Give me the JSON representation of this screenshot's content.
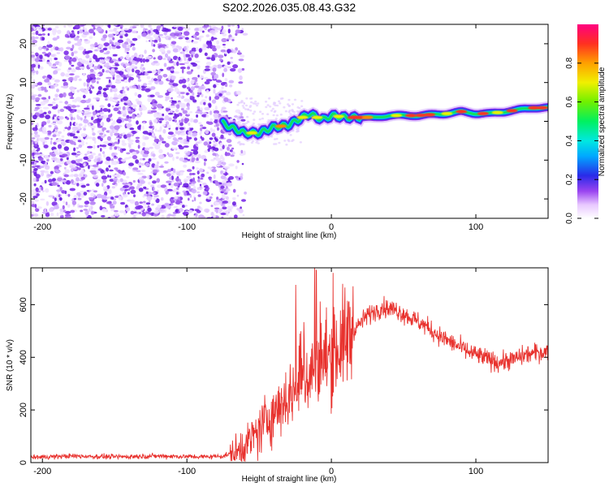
{
  "title": "S202.2026.035.08.43.G32",
  "chart_data": [
    {
      "type": "heatmap",
      "xlabel": "Height of straight line (km)",
      "ylabel": "Frequency (Hz)",
      "xlim": [
        -208,
        150
      ],
      "ylim": [
        -25,
        25
      ],
      "xticks": [
        -200,
        -100,
        0,
        100
      ],
      "yticks": [
        -20,
        -10,
        0,
        10,
        20
      ],
      "noise_region_x": [
        -208,
        -65
      ],
      "ridge": {
        "x": [
          -75,
          -70,
          -60,
          -50,
          -40,
          -30,
          -20,
          -15,
          -10,
          -5,
          0,
          10,
          20,
          30,
          40,
          60,
          80,
          90,
          100,
          110,
          120,
          130,
          140,
          150
        ],
        "y": [
          -0.5,
          -1.5,
          -3,
          -3,
          -1.5,
          -1,
          1,
          2,
          1,
          0.5,
          1.5,
          1,
          1,
          1,
          1.5,
          1.5,
          2,
          2.5,
          2,
          2,
          2.5,
          3,
          3.5,
          3.5
        ]
      },
      "colorbar": {
        "label": "Normalized spectral amplitude",
        "ticks": [
          "0.0",
          "0.2",
          "0.4",
          "0.6",
          "0.8"
        ],
        "range": [
          0,
          1
        ]
      }
    },
    {
      "type": "line",
      "xlabel": "Height of straight line (km)",
      "ylabel": "SNR (10 * v/v)",
      "xlim": [
        -208,
        150
      ],
      "ylim": [
        0,
        740
      ],
      "xticks": [
        -200,
        -100,
        0,
        100
      ],
      "yticks": [
        0,
        200,
        400,
        600
      ],
      "series": [
        {
          "name": "SNR",
          "color": "#e8322e",
          "x": [
            -208,
            -180,
            -150,
            -120,
            -90,
            -75,
            -65,
            -55,
            -45,
            -35,
            -25,
            -15,
            -5,
            5,
            15,
            25,
            35,
            45,
            55,
            65,
            75,
            85,
            95,
            105,
            115,
            125,
            135,
            145,
            150
          ],
          "y": [
            20,
            25,
            22,
            25,
            22,
            25,
            40,
            90,
            160,
            220,
            280,
            340,
            390,
            440,
            500,
            560,
            590,
            580,
            550,
            520,
            480,
            450,
            420,
            400,
            380,
            390,
            410,
            420,
            420
          ]
        }
      ]
    }
  ]
}
